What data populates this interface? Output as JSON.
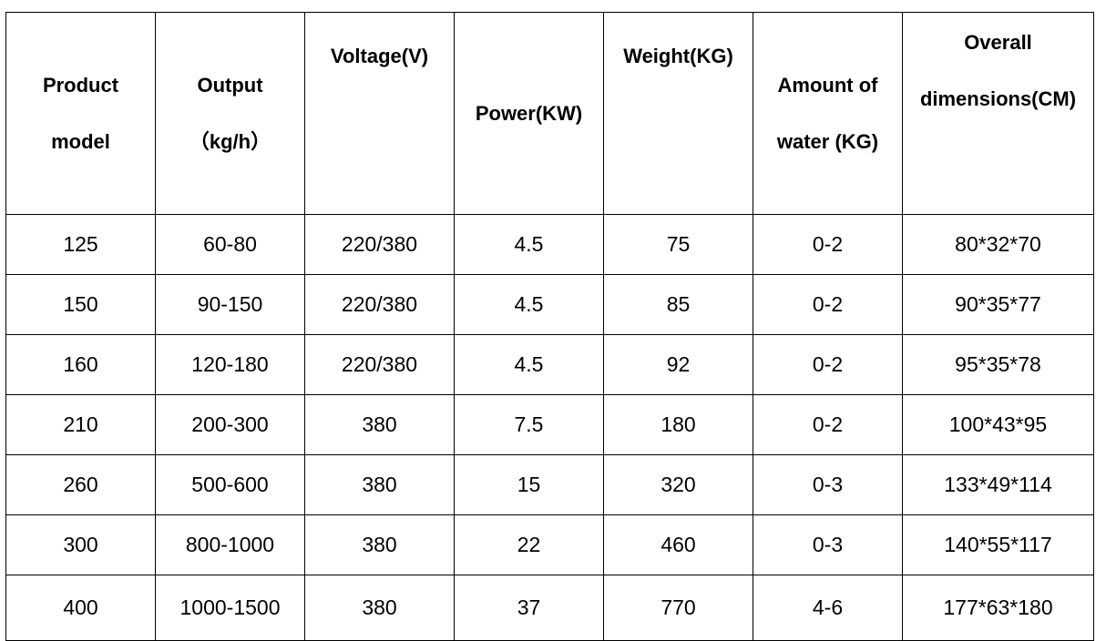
{
  "table": {
    "headers": [
      {
        "line1": "Product",
        "line2": "model"
      },
      {
        "line1": "Output",
        "line2": "（kg/h）"
      },
      {
        "line1": "Voltage(V)",
        "line2": ""
      },
      {
        "line1": "Power(KW)",
        "line2": ""
      },
      {
        "line1": "Weight(KG)",
        "line2": ""
      },
      {
        "line1": "Amount of",
        "line2": "water (KG)"
      },
      {
        "line1": "Overall",
        "line2": "dimensions(CM)"
      }
    ],
    "rows": [
      [
        "125",
        "60-80",
        "220/380",
        "4.5",
        "75",
        "0-2",
        "80*32*70"
      ],
      [
        "150",
        "90-150",
        "220/380",
        "4.5",
        "85",
        "0-2",
        "90*35*77"
      ],
      [
        "160",
        "120-180",
        "220/380",
        "4.5",
        "92",
        "0-2",
        "95*35*78"
      ],
      [
        "210",
        "200-300",
        "380",
        "7.5",
        "180",
        "0-2",
        "100*43*95"
      ],
      [
        "260",
        "500-600",
        "380",
        "15",
        "320",
        "0-3",
        "133*49*114"
      ],
      [
        "300",
        "800-1000",
        "380",
        "22",
        "460",
        "0-3",
        "140*55*117"
      ],
      [
        "400",
        "1000-1500",
        "380",
        "37",
        "770",
        "4-6",
        "177*63*180"
      ]
    ]
  }
}
